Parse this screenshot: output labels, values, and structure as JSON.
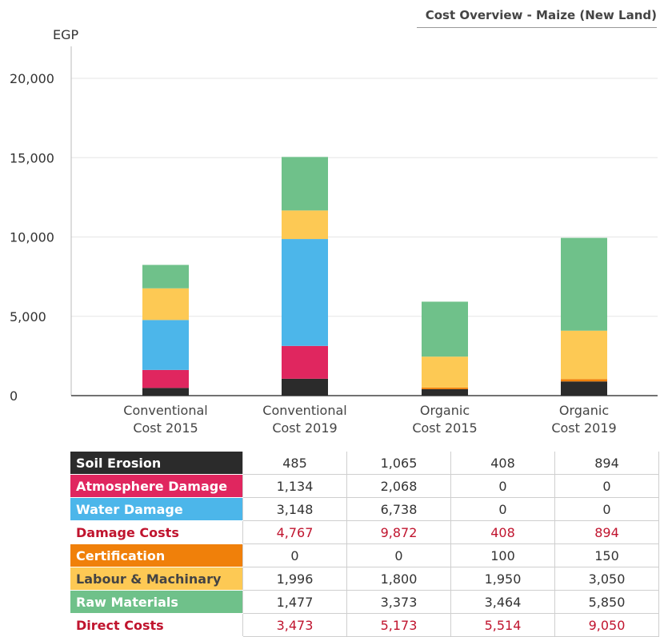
{
  "chart_data": {
    "type": "bar",
    "stacked": true,
    "title": "Cost Overview - Maize (New Land)",
    "ylabel": "EGP",
    "ylim": [
      0,
      20000
    ],
    "yticks": [
      "0",
      "5,000",
      "10,000",
      "15,000",
      "20,000"
    ],
    "ytick_values": [
      0,
      5000,
      10000,
      15000,
      20000
    ],
    "categories": [
      [
        "Conventional",
        "Cost 2015"
      ],
      [
        "Conventional",
        "Cost 2019"
      ],
      [
        "Organic",
        "Cost 2015"
      ],
      [
        "Organic",
        "Cost 2019"
      ]
    ],
    "grid": true,
    "series": [
      {
        "name": "Soil Erosion",
        "color": "#2b2b2b",
        "values": [
          485,
          1065,
          408,
          894
        ]
      },
      {
        "name": "Atmosphere Damage",
        "color": "#e0265f",
        "values": [
          1134,
          2068,
          0,
          0
        ]
      },
      {
        "name": "Water Damage",
        "color": "#4cb6ea",
        "values": [
          3148,
          6738,
          0,
          0
        ]
      },
      {
        "name": "Certification",
        "color": "#f0800a",
        "values": [
          0,
          0,
          100,
          150
        ]
      },
      {
        "name": "Labour & Machinary",
        "color": "#fdc954",
        "values": [
          1996,
          1800,
          1950,
          3050
        ]
      },
      {
        "name": "Raw Materials",
        "color": "#6fc18a",
        "values": [
          1477,
          3373,
          3464,
          5850
        ]
      }
    ],
    "table": [
      {
        "label": "Soil Erosion",
        "bg": "#2b2b2b",
        "fg": "#ffffff",
        "red": false,
        "values": [
          "485",
          "1,065",
          "408",
          "894"
        ]
      },
      {
        "label": "Atmosphere Damage",
        "bg": "#e0265f",
        "fg": "#ffffff",
        "red": false,
        "values": [
          "1,134",
          "2,068",
          "0",
          "0"
        ]
      },
      {
        "label": "Water Damage",
        "bg": "#4cb6ea",
        "fg": "#ffffff",
        "red": false,
        "values": [
          "3,148",
          "6,738",
          "0",
          "0"
        ]
      },
      {
        "label": "Damage Costs",
        "bg": "#ffffff",
        "fg": "#c0142e",
        "red": true,
        "values": [
          "4,767",
          "9,872",
          "408",
          "894"
        ]
      },
      {
        "label": "Certification",
        "bg": "#f0800a",
        "fg": "#ffffff",
        "red": false,
        "values": [
          "0",
          "0",
          "100",
          "150"
        ]
      },
      {
        "label": "Labour & Machinary",
        "bg": "#fdc954",
        "fg": "#444444",
        "red": false,
        "values": [
          "1,996",
          "1,800",
          "1,950",
          "3,050"
        ]
      },
      {
        "label": "Raw Materials",
        "bg": "#6fc18a",
        "fg": "#ffffff",
        "red": false,
        "values": [
          "1,477",
          "3,373",
          "3,464",
          "5,850"
        ]
      },
      {
        "label": "Direct Costs",
        "bg": "#ffffff",
        "fg": "#c0142e",
        "red": true,
        "values": [
          "3,473",
          "5,173",
          "5,514",
          "9,050"
        ]
      }
    ]
  }
}
